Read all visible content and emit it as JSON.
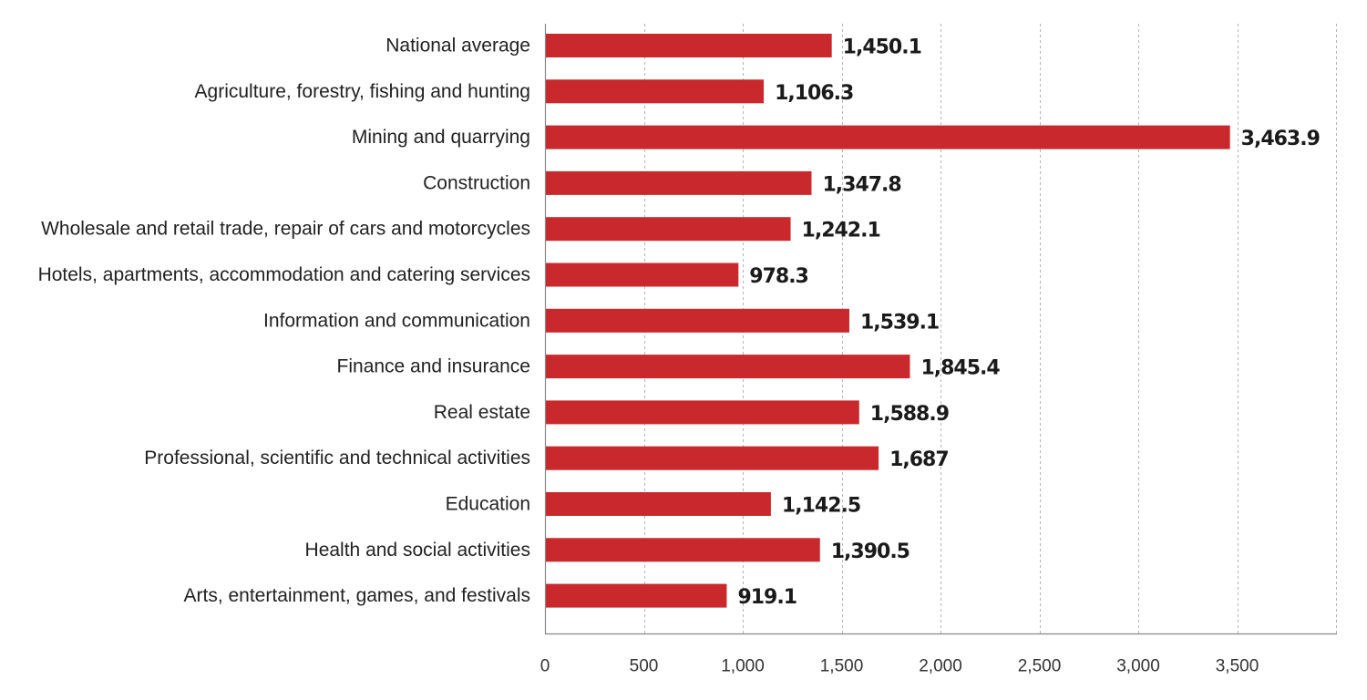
{
  "chart_data": {
    "type": "bar",
    "orientation": "horizontal",
    "title": "",
    "xlabel": "",
    "ylabel": "",
    "categories": [
      "National average",
      "Agriculture, forestry, fishing and hunting",
      "Mining and quarrying",
      "Construction",
      "Wholesale and retail trade, repair of cars and motorcycles",
      "Hotels, apartments, accommodation and catering services",
      "Information and communication",
      "Finance and insurance",
      "Real estate",
      "Professional, scientific and technical activities",
      "Education",
      "Health and social activities",
      "Arts, entertainment, games, and festivals"
    ],
    "values": [
      1450.1,
      1106.3,
      3463.9,
      1347.8,
      1242.1,
      978.3,
      1539.1,
      1845.4,
      1588.9,
      1687,
      1142.5,
      1390.5,
      919.1
    ],
    "value_labels": [
      "1,450.1",
      "1,106.3",
      "3,463.9",
      "1,347.8",
      "1,242.1",
      "978.3",
      "1,539.1",
      "1,845.4",
      "1,588.9",
      "1,687",
      "1,142.5",
      "1,390.5",
      "919.1"
    ],
    "xlim": [
      0,
      4000
    ],
    "x_ticks": [
      0,
      500,
      1000,
      1500,
      2000,
      2500,
      3000,
      3500
    ],
    "x_tick_labels": [
      "0",
      "500",
      "1,000",
      "1,500",
      "2,000",
      "2,500",
      "3,000",
      "3,500"
    ],
    "grid": "vertical dashed",
    "legend": "none",
    "bar_color": "#c9292c"
  }
}
